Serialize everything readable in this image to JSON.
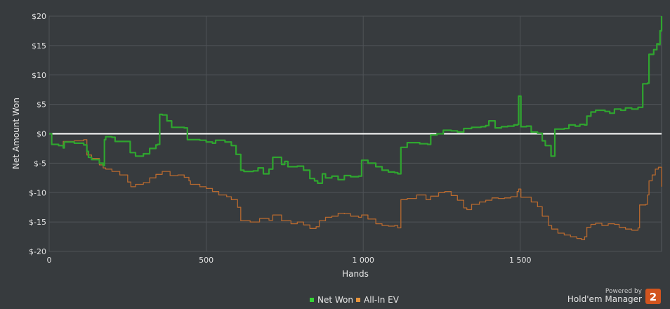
{
  "chart_data": {
    "type": "line",
    "xlabel": "Hands",
    "ylabel": "Net Amount Won",
    "xlim": [
      0,
      1950
    ],
    "ylim": [
      -20,
      20
    ],
    "x_ticks": [
      0,
      500,
      1000,
      1500
    ],
    "x_tick_labels": [
      "0",
      "500",
      "1 000",
      "1 500"
    ],
    "y_ticks": [
      20,
      15,
      10,
      5,
      0,
      -5,
      -10,
      -15,
      -20
    ],
    "y_tick_labels": [
      "$20",
      "$15",
      "$10",
      "$5",
      "$0",
      "$-5",
      "$-10",
      "$-15",
      "$-20"
    ],
    "grid": true,
    "zero_line_color": "#ffffff",
    "legend_position": "bottom-center",
    "series": [
      {
        "name": "Net Won",
        "color": "#2fa52f",
        "legend_color": "#35d335",
        "points": [
          [
            0,
            0
          ],
          [
            8,
            -1.8
          ],
          [
            30,
            -2.0
          ],
          [
            45,
            -2.4
          ],
          [
            48,
            -1.4
          ],
          [
            80,
            -1.6
          ],
          [
            110,
            -1.9
          ],
          [
            120,
            -3.0
          ],
          [
            125,
            -4.0
          ],
          [
            135,
            -4.4
          ],
          [
            160,
            -5.0
          ],
          [
            172,
            -5.4
          ],
          [
            176,
            -1.0
          ],
          [
            180,
            -0.5
          ],
          [
            200,
            -0.6
          ],
          [
            210,
            -1.3
          ],
          [
            250,
            -1.3
          ],
          [
            258,
            -3.2
          ],
          [
            275,
            -3.8
          ],
          [
            300,
            -3.4
          ],
          [
            320,
            -2.5
          ],
          [
            340,
            -1.9
          ],
          [
            345,
            -1.8
          ],
          [
            352,
            3.3
          ],
          [
            360,
            3.2
          ],
          [
            375,
            2.2
          ],
          [
            390,
            1.1
          ],
          [
            430,
            1.0
          ],
          [
            440,
            -1.0
          ],
          [
            480,
            -1.1
          ],
          [
            500,
            -1.4
          ],
          [
            520,
            -1.6
          ],
          [
            530,
            -1.1
          ],
          [
            560,
            -1.4
          ],
          [
            580,
            -2.0
          ],
          [
            595,
            -3.5
          ],
          [
            610,
            -6.2
          ],
          [
            620,
            -6.4
          ],
          [
            650,
            -6.3
          ],
          [
            665,
            -5.8
          ],
          [
            682,
            -6.8
          ],
          [
            700,
            -6.0
          ],
          [
            712,
            -4.0
          ],
          [
            740,
            -5.2
          ],
          [
            750,
            -4.7
          ],
          [
            760,
            -5.6
          ],
          [
            790,
            -5.5
          ],
          [
            810,
            -6.2
          ],
          [
            830,
            -7.6
          ],
          [
            845,
            -8.0
          ],
          [
            855,
            -8.4
          ],
          [
            870,
            -6.8
          ],
          [
            880,
            -7.5
          ],
          [
            900,
            -7.2
          ],
          [
            920,
            -7.8
          ],
          [
            940,
            -7.1
          ],
          [
            960,
            -7.3
          ],
          [
            985,
            -7.2
          ],
          [
            995,
            -4.5
          ],
          [
            1015,
            -5.0
          ],
          [
            1040,
            -5.6
          ],
          [
            1060,
            -6.2
          ],
          [
            1080,
            -6.5
          ],
          [
            1100,
            -6.6
          ],
          [
            1110,
            -6.8
          ],
          [
            1120,
            -2.3
          ],
          [
            1140,
            -1.5
          ],
          [
            1180,
            -1.7
          ],
          [
            1205,
            -1.8
          ],
          [
            1215,
            -0.2
          ],
          [
            1235,
            0.0
          ],
          [
            1255,
            0.6
          ],
          [
            1280,
            0.5
          ],
          [
            1300,
            0.3
          ],
          [
            1320,
            0.9
          ],
          [
            1345,
            1.1
          ],
          [
            1375,
            1.2
          ],
          [
            1390,
            1.4
          ],
          [
            1400,
            2.2
          ],
          [
            1420,
            1.0
          ],
          [
            1440,
            1.2
          ],
          [
            1460,
            1.3
          ],
          [
            1480,
            1.5
          ],
          [
            1492,
            1.6
          ],
          [
            1495,
            6.4
          ],
          [
            1502,
            1.2
          ],
          [
            1520,
            1.3
          ],
          [
            1535,
            0.3
          ],
          [
            1555,
            0.1
          ],
          [
            1570,
            -1.2
          ],
          [
            1580,
            -2.0
          ],
          [
            1598,
            -3.8
          ],
          [
            1610,
            0.8
          ],
          [
            1640,
            0.9
          ],
          [
            1655,
            1.5
          ],
          [
            1675,
            1.3
          ],
          [
            1690,
            1.6
          ],
          [
            1705,
            1.5
          ],
          [
            1712,
            3.0
          ],
          [
            1725,
            3.7
          ],
          [
            1740,
            4.0
          ],
          [
            1770,
            3.8
          ],
          [
            1785,
            3.5
          ],
          [
            1800,
            4.2
          ],
          [
            1820,
            4.0
          ],
          [
            1835,
            4.4
          ],
          [
            1855,
            4.2
          ],
          [
            1875,
            4.5
          ],
          [
            1890,
            8.5
          ],
          [
            1905,
            8.6
          ],
          [
            1910,
            13.5
          ],
          [
            1925,
            14.3
          ],
          [
            1935,
            15.3
          ],
          [
            1940,
            15.2
          ],
          [
            1945,
            17.5
          ],
          [
            1950,
            20.0
          ]
        ]
      },
      {
        "name": "All-In EV",
        "color": "#b7692f",
        "legend_color": "#e8953c",
        "points": [
          [
            0,
            0
          ],
          [
            8,
            -1.8
          ],
          [
            30,
            -2.0
          ],
          [
            45,
            -1.3
          ],
          [
            80,
            -1.2
          ],
          [
            110,
            -1.0
          ],
          [
            120,
            -3.6
          ],
          [
            135,
            -4.2
          ],
          [
            160,
            -5.3
          ],
          [
            172,
            -5.8
          ],
          [
            180,
            -6.0
          ],
          [
            200,
            -6.4
          ],
          [
            225,
            -7.0
          ],
          [
            250,
            -8.2
          ],
          [
            260,
            -9.0
          ],
          [
            275,
            -8.6
          ],
          [
            300,
            -8.3
          ],
          [
            320,
            -7.5
          ],
          [
            340,
            -6.9
          ],
          [
            360,
            -6.4
          ],
          [
            385,
            -7.1
          ],
          [
            410,
            -7.0
          ],
          [
            430,
            -7.4
          ],
          [
            445,
            -8.0
          ],
          [
            450,
            -8.6
          ],
          [
            480,
            -9.0
          ],
          [
            500,
            -9.3
          ],
          [
            520,
            -9.8
          ],
          [
            540,
            -10.4
          ],
          [
            565,
            -10.7
          ],
          [
            580,
            -11.2
          ],
          [
            600,
            -12.5
          ],
          [
            610,
            -14.8
          ],
          [
            640,
            -15.0
          ],
          [
            670,
            -14.4
          ],
          [
            700,
            -14.7
          ],
          [
            712,
            -13.8
          ],
          [
            740,
            -14.8
          ],
          [
            770,
            -15.3
          ],
          [
            790,
            -15.0
          ],
          [
            810,
            -15.5
          ],
          [
            830,
            -16.1
          ],
          [
            850,
            -15.8
          ],
          [
            860,
            -14.8
          ],
          [
            880,
            -14.2
          ],
          [
            900,
            -14.0
          ],
          [
            920,
            -13.5
          ],
          [
            940,
            -13.6
          ],
          [
            960,
            -14.0
          ],
          [
            985,
            -14.2
          ],
          [
            995,
            -13.8
          ],
          [
            1015,
            -14.5
          ],
          [
            1040,
            -15.3
          ],
          [
            1060,
            -15.6
          ],
          [
            1080,
            -15.7
          ],
          [
            1100,
            -15.6
          ],
          [
            1110,
            -16.0
          ],
          [
            1120,
            -11.2
          ],
          [
            1140,
            -11.0
          ],
          [
            1170,
            -10.4
          ],
          [
            1200,
            -11.2
          ],
          [
            1215,
            -10.6
          ],
          [
            1240,
            -10.0
          ],
          [
            1260,
            -9.8
          ],
          [
            1280,
            -10.5
          ],
          [
            1300,
            -11.3
          ],
          [
            1320,
            -12.6
          ],
          [
            1330,
            -12.9
          ],
          [
            1345,
            -12.0
          ],
          [
            1370,
            -11.6
          ],
          [
            1390,
            -11.3
          ],
          [
            1410,
            -10.9
          ],
          [
            1430,
            -11.0
          ],
          [
            1450,
            -10.9
          ],
          [
            1470,
            -10.7
          ],
          [
            1490,
            -9.8
          ],
          [
            1495,
            -9.4
          ],
          [
            1502,
            -10.8
          ],
          [
            1520,
            -10.8
          ],
          [
            1535,
            -11.6
          ],
          [
            1555,
            -12.4
          ],
          [
            1570,
            -14.0
          ],
          [
            1590,
            -15.6
          ],
          [
            1600,
            -16.2
          ],
          [
            1620,
            -16.9
          ],
          [
            1640,
            -17.2
          ],
          [
            1660,
            -17.5
          ],
          [
            1680,
            -17.8
          ],
          [
            1695,
            -18.0
          ],
          [
            1705,
            -17.5
          ],
          [
            1712,
            -15.9
          ],
          [
            1725,
            -15.4
          ],
          [
            1740,
            -15.2
          ],
          [
            1760,
            -15.6
          ],
          [
            1780,
            -15.3
          ],
          [
            1800,
            -15.4
          ],
          [
            1815,
            -15.9
          ],
          [
            1835,
            -16.2
          ],
          [
            1855,
            -16.4
          ],
          [
            1875,
            -16.0
          ],
          [
            1880,
            -12.1
          ],
          [
            1900,
            -12.0
          ],
          [
            1905,
            -10.4
          ],
          [
            1910,
            -8.0
          ],
          [
            1920,
            -7.0
          ],
          [
            1930,
            -6.0
          ],
          [
            1940,
            -5.7
          ],
          [
            1950,
            -9.0
          ]
        ]
      }
    ]
  },
  "branding": {
    "powered_by": "Powered by",
    "product_name": "Hold'em Manager",
    "badge_number": "2",
    "badge_color": "#d2541e"
  }
}
